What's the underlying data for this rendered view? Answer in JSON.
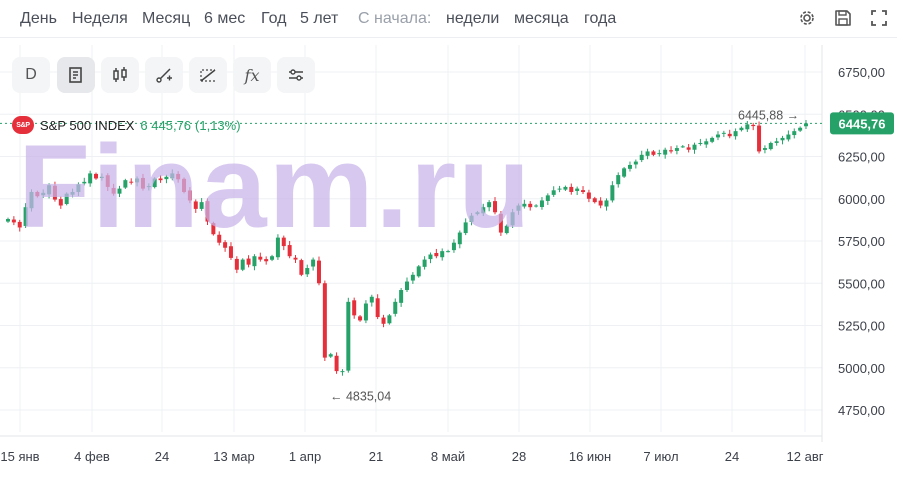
{
  "toolbar": {
    "periods": [
      "День",
      "Неделя",
      "Месяц",
      "6 мес",
      "Год",
      "5 лет"
    ],
    "since_label": "С начала:",
    "since": [
      "недели",
      "месяца",
      "года"
    ]
  },
  "tools": [
    {
      "label": "D",
      "icon": "interval-icon"
    },
    {
      "label": "",
      "icon": "chart-type-icon"
    },
    {
      "label": "",
      "icon": "candles-icon"
    },
    {
      "label": "",
      "icon": "draw-line-icon"
    },
    {
      "label": "",
      "icon": "fibonacci-icon"
    },
    {
      "label": "fx",
      "icon": "indicators-icon"
    },
    {
      "label": "",
      "icon": "settings-sliders-icon"
    }
  ],
  "symbol": {
    "badge": "S&P",
    "name": "S&P 500 INDEX",
    "price": "6 445,76",
    "change": "(1,13%)"
  },
  "watermark": "Finam.ru",
  "colors": {
    "up": "#26a269",
    "down": "#e5303b",
    "accent": "#26a269"
  },
  "chart_data": {
    "type": "candlestick",
    "title": "",
    "x_tick_labels": [
      "15 янв",
      "4 фев",
      "24",
      "13 мар",
      "1 апр",
      "21",
      "8 май",
      "28",
      "16 июн",
      "7 июл",
      "24",
      "12 авг"
    ],
    "y_tick_labels": [
      "6750,00",
      "6500,00",
      "6250,00",
      "6000,00",
      "5750,00",
      "5500,00",
      "5250,00",
      "5000,00",
      "4750,00"
    ],
    "ylim": [
      4700,
      6850
    ],
    "grid": true,
    "last_price_label": "6445,76",
    "high_annotation": "6445,88",
    "high_value": 6445.88,
    "low_annotation": "4835,04",
    "low_value": 4835.04,
    "close_series": [
      5880,
      5860,
      5830,
      5950,
      6040,
      6015,
      6035,
      6080,
      5995,
      5960,
      6030,
      6040,
      6085,
      6100,
      6150,
      6120,
      6130,
      6070,
      6030,
      6060,
      6110,
      6100,
      6120,
      6060,
      6075,
      6120,
      6110,
      6130,
      6150,
      6115,
      6040,
      5990,
      5940,
      5980,
      5865,
      5790,
      5740,
      5710,
      5650,
      5580,
      5640,
      5610,
      5660,
      5640,
      5630,
      5660,
      5770,
      5720,
      5660,
      5640,
      5550,
      5590,
      5640,
      5500,
      5060,
      5080,
      4980,
      4980,
      5390,
      5310,
      5280,
      5380,
      5420,
      5300,
      5260,
      5310,
      5390,
      5460,
      5510,
      5550,
      5600,
      5640,
      5670,
      5660,
      5690,
      5690,
      5740,
      5800,
      5860,
      5900,
      5920,
      5950,
      5980,
      5920,
      5800,
      5840,
      5920,
      5960,
      5970,
      5950,
      5960,
      5990,
      6020,
      6050,
      6060,
      6070,
      6040,
      6060,
      6040,
      6000,
      5980,
      5960,
      5990,
      6080,
      6140,
      6180,
      6200,
      6220,
      6260,
      6280,
      6260,
      6270,
      6290,
      6280,
      6300,
      6310,
      6290,
      6320,
      6330,
      6340,
      6360,
      6380,
      6390,
      6370,
      6400,
      6420,
      6440,
      6430,
      6280,
      6300,
      6330,
      6340,
      6360,
      6380,
      6400,
      6420,
      6445.76
    ]
  }
}
